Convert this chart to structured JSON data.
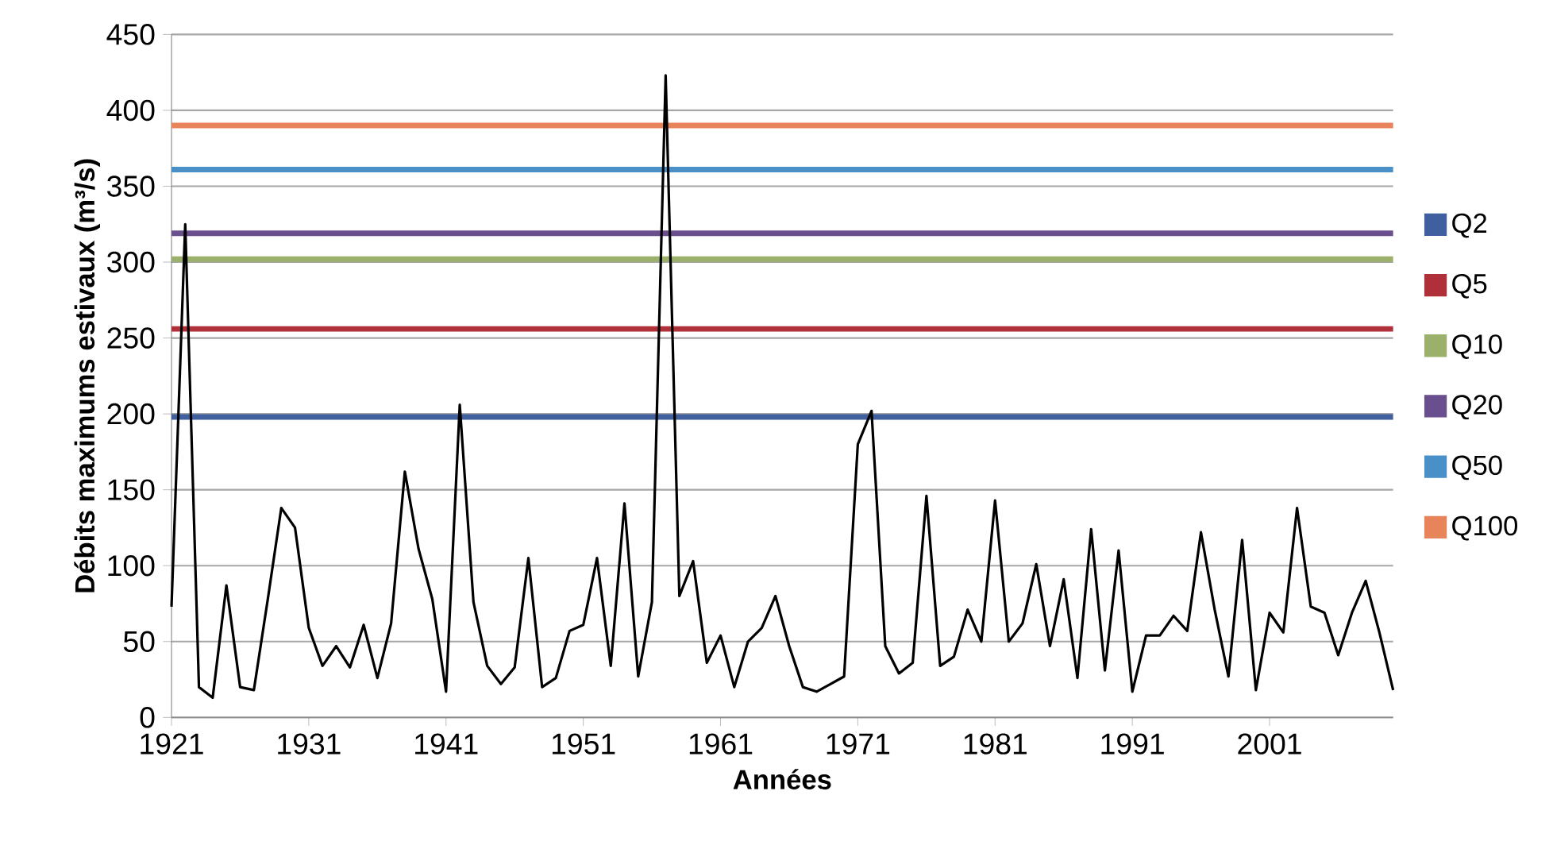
{
  "chart_data": {
    "type": "line",
    "xlabel": "Années",
    "ylabel": "Débits maximums estivaux (m³/s)",
    "xlim": [
      1921,
      2010
    ],
    "xticks": [
      1921,
      1931,
      1941,
      1951,
      1961,
      1971,
      1981,
      1991,
      2001
    ],
    "ylim": [
      0,
      450
    ],
    "yticks": [
      0,
      50,
      100,
      150,
      200,
      250,
      300,
      350,
      400,
      450
    ],
    "grid": "y",
    "legend": "right",
    "marker": "none",
    "line_style": "solid",
    "x": [
      1921,
      1922,
      1923,
      1924,
      1925,
      1926,
      1927,
      1928,
      1929,
      1930,
      1931,
      1932,
      1933,
      1934,
      1935,
      1936,
      1937,
      1938,
      1939,
      1940,
      1941,
      1942,
      1943,
      1944,
      1945,
      1946,
      1947,
      1948,
      1949,
      1950,
      1951,
      1952,
      1953,
      1954,
      1955,
      1956,
      1957,
      1958,
      1959,
      1960,
      1961,
      1962,
      1963,
      1964,
      1965,
      1966,
      1967,
      1968,
      1969,
      1970,
      1971,
      1972,
      1973,
      1974,
      1975,
      1976,
      1977,
      1978,
      1979,
      1980,
      1981,
      1982,
      1983,
      1984,
      1985,
      1986,
      1987,
      1988,
      1989,
      1990,
      1991,
      1992,
      1993,
      1994,
      1995,
      1996,
      1997,
      1998,
      1999,
      2000,
      2001,
      2002,
      2003,
      2004,
      2005,
      2006,
      2007,
      2008,
      2009,
      2010
    ],
    "ref_lines": [
      {
        "axis": "y",
        "value": 198,
        "label": "Q2",
        "color": "#3f5f9f"
      },
      {
        "axis": "y",
        "value": 256,
        "label": "Q5",
        "color": "#b0303a"
      },
      {
        "axis": "y",
        "value": 302,
        "label": "Q10",
        "color": "#9bb06a"
      },
      {
        "axis": "y",
        "value": 319,
        "label": "Q20",
        "color": "#6a4f8f"
      },
      {
        "axis": "y",
        "value": 361,
        "label": "Q50",
        "color": "#4a90c8"
      },
      {
        "axis": "y",
        "value": 390,
        "label": "Q100",
        "color": "#e8845a"
      }
    ],
    "series": [
      {
        "color": "#000000",
        "values": [
          73,
          325,
          20,
          13,
          87,
          20,
          18,
          77,
          138,
          125,
          59,
          34,
          47,
          33,
          61,
          26,
          62,
          162,
          111,
          78,
          17,
          206,
          76,
          34,
          22,
          33,
          105,
          20,
          26,
          57,
          61,
          105,
          34,
          141,
          27,
          76,
          423,
          80,
          103,
          36,
          54,
          20,
          50,
          59,
          80,
          47,
          20,
          17,
          22,
          27,
          180,
          202,
          47,
          29,
          36,
          146,
          34,
          40,
          71,
          50,
          143,
          50,
          62,
          101,
          47,
          91,
          26,
          124,
          31,
          110,
          17,
          54,
          54,
          67,
          57,
          122,
          71,
          27,
          117,
          18,
          69,
          56,
          138,
          73,
          69,
          41,
          69,
          90,
          56,
          18
        ]
      }
    ]
  }
}
